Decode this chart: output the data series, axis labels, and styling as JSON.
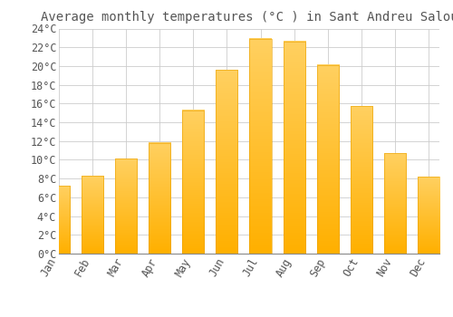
{
  "title": "Average monthly temperatures (°C ) in Sant Andreu Salou",
  "months": [
    "Jan",
    "Feb",
    "Mar",
    "Apr",
    "May",
    "Jun",
    "Jul",
    "Aug",
    "Sep",
    "Oct",
    "Nov",
    "Dec"
  ],
  "values": [
    7.2,
    8.3,
    10.1,
    11.8,
    15.3,
    19.6,
    22.9,
    22.6,
    20.1,
    15.7,
    10.7,
    8.2
  ],
  "bar_color_top": "#FFC830",
  "bar_color_bottom": "#FFB000",
  "bar_edge_color": "#E8A000",
  "background_color": "#FFFFFF",
  "grid_color": "#CCCCCC",
  "text_color": "#555555",
  "ylim": [
    0,
    24
  ],
  "ytick_step": 2,
  "title_fontsize": 10,
  "tick_fontsize": 8.5,
  "font_family": "monospace",
  "figsize": [
    5.0,
    3.5
  ],
  "dpi": 100
}
